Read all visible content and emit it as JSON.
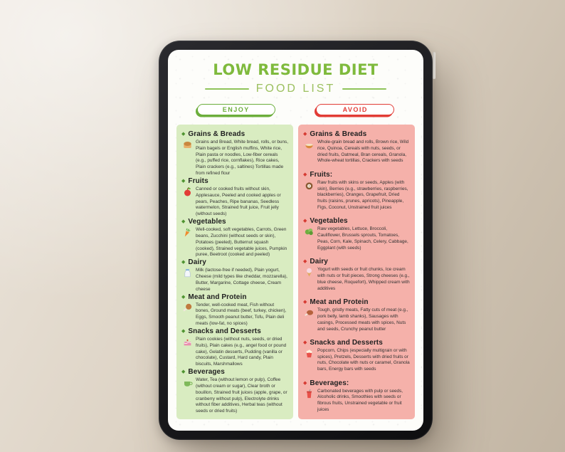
{
  "header": {
    "title": "LOW RESIDUE DIET",
    "subtitle": "FOOD LIST"
  },
  "colors": {
    "title_green": "#7fba3d",
    "enjoy_accent": "#6cae3c",
    "avoid_accent": "#e23c36",
    "enjoy_column_bg": "#d9ecc1",
    "avoid_column_bg": "#f5b1aa"
  },
  "columns": [
    {
      "id": "enjoy",
      "label": "ENJOY",
      "categories": [
        {
          "icon": "bread-icon",
          "title": "Grains & Breads",
          "items": "Grains and Bread, White bread, rolls, or buns, Plain bagels or English muffins, White rice, Plain pasta or noodles, Low-fiber cereals (e.g., puffed rice, cornflakes), Rice cakes, Plain crackers (e.g., saltines) Tortillas made from refined flour"
        },
        {
          "icon": "apple-icon",
          "title": "Fruits",
          "items": "Canned or cooked fruits without skin, Applesauce, Peeled and cooked apples or pears, Peaches, Ripe bananas, Seedless watermelon, Strained fruit juice, Fruit jelly (without seeds)"
        },
        {
          "icon": "carrot-icon",
          "title": "Vegetables",
          "items": "Well-cooked, soft vegetables, Carrots, Green beans, Zucchini (without seeds or skin), Potatoes (peeled), Butternut squash (cooked), Strained vegetable juices, Pumpkin puree, Beetroot (cooked and peeled)"
        },
        {
          "icon": "milk-icon",
          "title": "Dairy",
          "items": "Milk (lactose-free if needed), Plain yogurt, Cheese (mild types like cheddar, mozzarella), Butter, Margarine, Cottage cheese, Cream cheese"
        },
        {
          "icon": "meat-icon",
          "title": "Meat and Protein",
          "items": "Tender, well-cooked meat, Fish without bones, Ground meats (beef, turkey, chicken), Eggs, Smooth peanut butter, Tofu, Plain deli meats (low-fat, no spices)"
        },
        {
          "icon": "cake-icon",
          "title": "Snacks and Desserts",
          "items": "Plain cookies (without nuts, seeds, or dried fruits), Plain cakes (e.g., angel food or pound cake), Gelatin desserts, Pudding (vanilla or chocolate), Custard, Hard candy, Plain biscuits, Marshmallows"
        },
        {
          "icon": "teacup-icon",
          "title": "Beverages",
          "items": "Water, Tea (without lemon or pulp), Coffee (without cream or sugar), Clear broth or bouillon, Strained fruit juices (apple, grape, or cranberry without pulp), Electrolyte drinks without fiber additives, Herbal teas (without seeds or dried fruits)"
        }
      ]
    },
    {
      "id": "avoid",
      "label": "AVOID",
      "categories": [
        {
          "icon": "grain-bowl-icon",
          "title": "Grains & Breads",
          "items": "Whole-grain bread and rolls, Brown rice, Wild rice, Quinoa, Cereals with nuts, seeds, or dried fruits, Oatmeal, Bran cereals, Granola, Whole-wheat tortillas, Crackers with seeds"
        },
        {
          "icon": "coconut-icon",
          "title": "Fruits:",
          "items": "Raw fruits with skins or seeds, Apples (with skin), Berries (e.g., strawberries, raspberries, blackberries), Oranges, Grapefruit, Dried fruits (raisins, prunes, apricots), Pineapple, Figs, Coconut, Unstrained fruit juices"
        },
        {
          "icon": "leafy-greens-icon",
          "title": "Vegetables",
          "items": "Raw vegetables, Lettuce, Broccoli, Cauliflower, Brussels sprouts, Tomatoes, Peas, Corn, Kale, Spinach, Celery, Cabbage, Eggplant (with seeds)"
        },
        {
          "icon": "ice-cream-icon",
          "title": "Dairy",
          "items": "Yogurt with seeds or fruit chunks, Ice cream with nuts or fruit pieces, Strong cheeses (e.g., blue cheese, Roquefort), Whipped cream with additives"
        },
        {
          "icon": "meat-bone-icon",
          "title": "Meat and Protein",
          "items": "Tough, gristly meats, Fatty cuts of meat (e.g., pork belly, lamb shanks), Sausages with casings, Processed meats with spices, Nuts and seeds, Crunchy peanut butter"
        },
        {
          "icon": "popcorn-icon",
          "title": "Snacks and Desserts",
          "items": "Popcorn, Chips (especially multigrain or with spices), Pretzels, Desserts with dried fruits or nuts, Chocolate with nuts or caramel, Granola bars, Energy bars with seeds"
        },
        {
          "icon": "soda-cup-icon",
          "title": "Beverages:",
          "items": "Carbonated beverages with pulp or seeds, Alcoholic drinks, Smoothies with seeds or fibrous fruits, Unstrained vegetable or fruit juices"
        }
      ]
    }
  ]
}
